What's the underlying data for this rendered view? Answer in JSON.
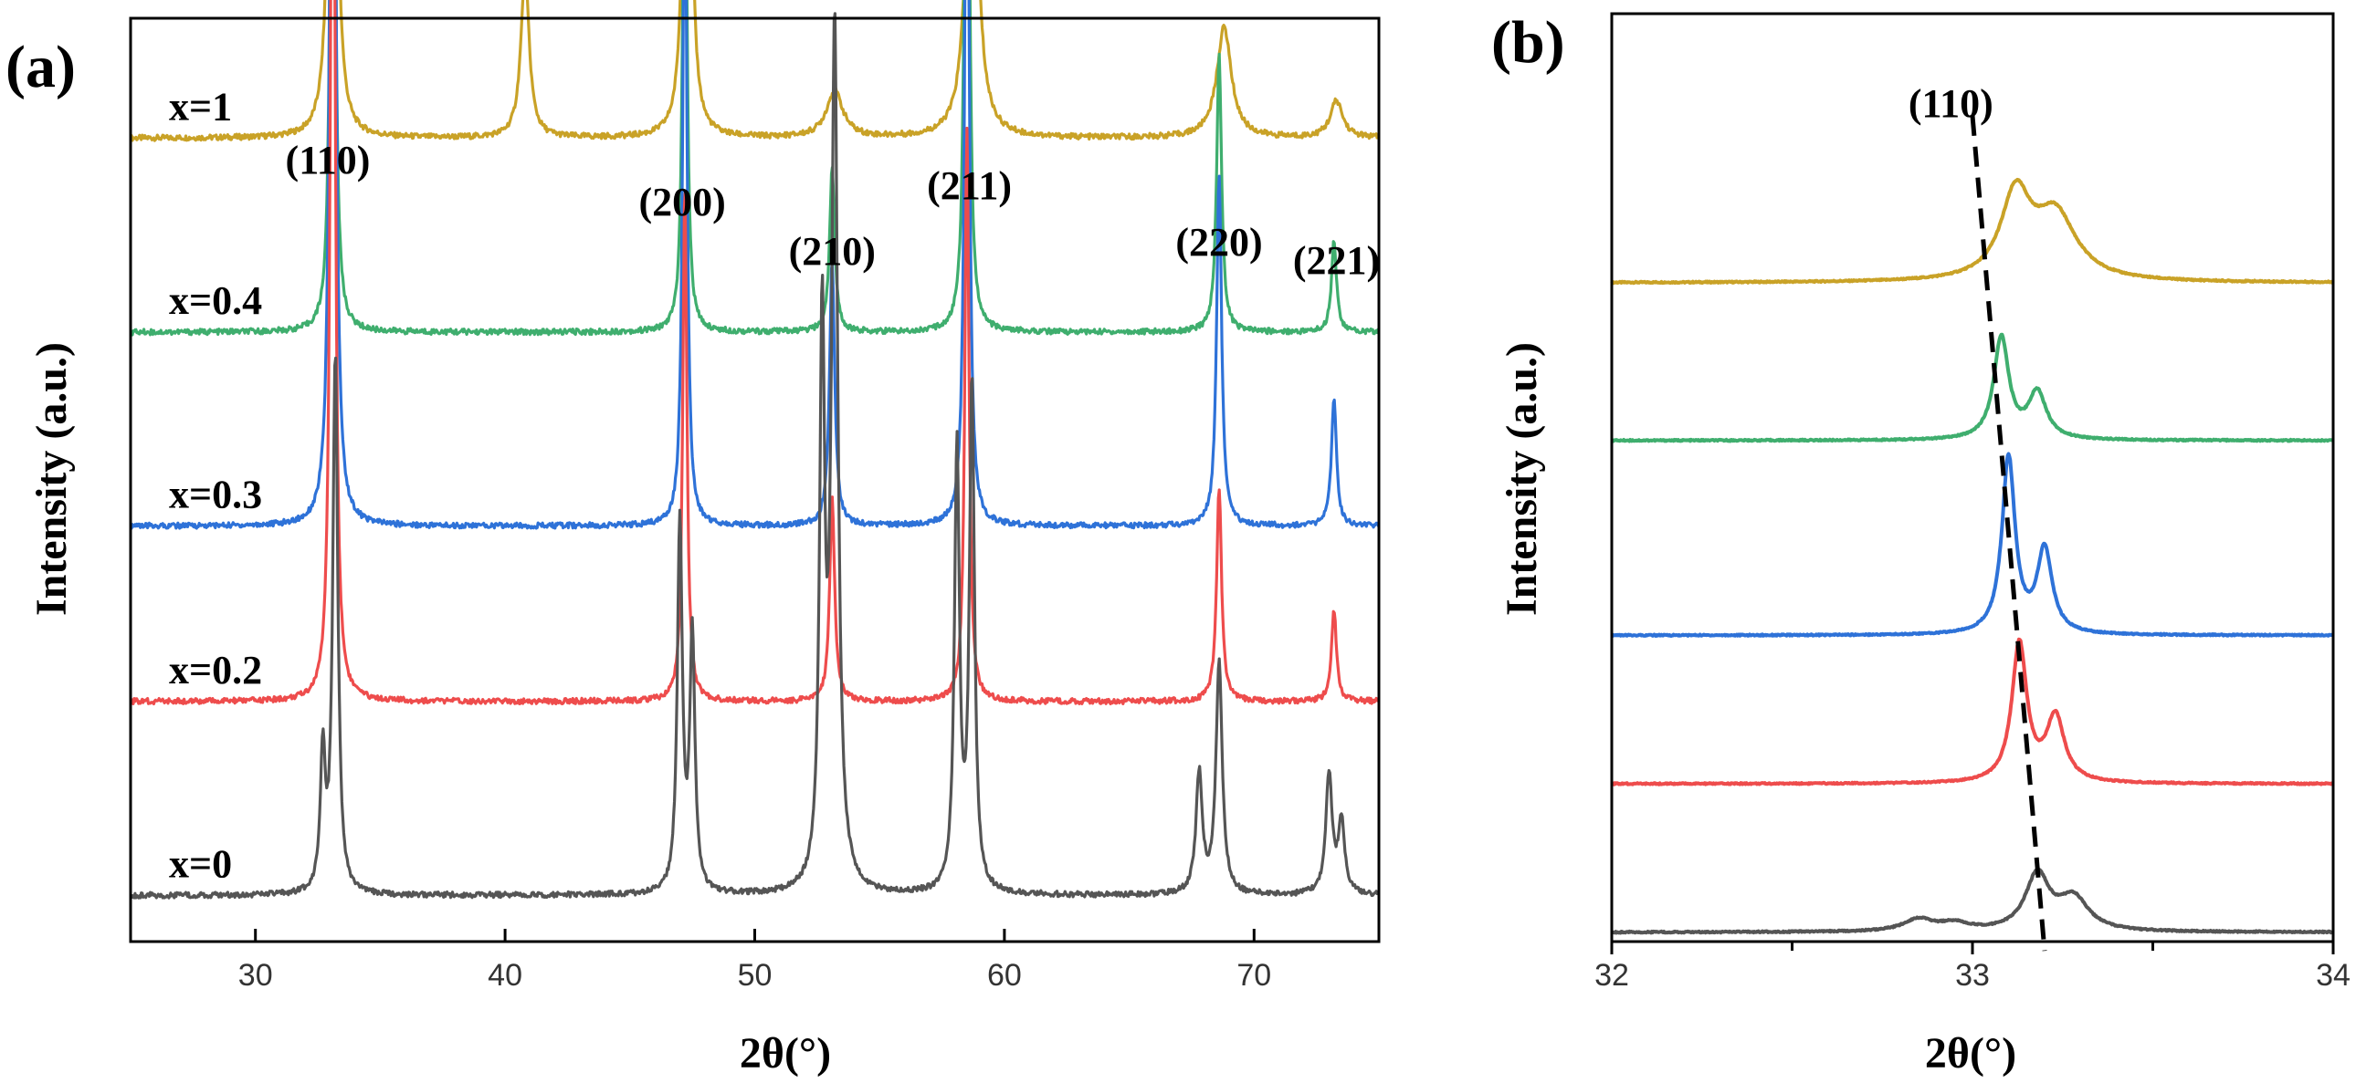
{
  "chart_data": [
    {
      "panel": "(a)",
      "type": "line",
      "title": "",
      "xlabel": "2θ(°)",
      "ylabel": "Intensity (a.u.)",
      "xlim": [
        25,
        75
      ],
      "xticks": [
        30,
        40,
        50,
        60,
        70
      ],
      "peak_labels": [
        {
          "text": "(110)",
          "x": 32.9
        },
        {
          "text": "(200)",
          "x": 47.1
        },
        {
          "text": "(210)",
          "x": 53.1
        },
        {
          "text": "(211)",
          "x": 58.6
        },
        {
          "text": "(220)",
          "x": 68.6
        },
        {
          "text": "(221)",
          "x": 73.3
        }
      ],
      "series": [
        {
          "name": "x=1",
          "color": "#C9A227",
          "baseline": 0.87,
          "peaks": [
            [
              33.1,
              0.82,
              0.15
            ],
            [
              40.8,
              0.18,
              0.2
            ],
            [
              47.3,
              0.7,
              0.15
            ],
            [
              53.2,
              0.05,
              0.4
            ],
            [
              58.7,
              0.44,
              0.25
            ],
            [
              68.8,
              0.12,
              0.35
            ],
            [
              73.3,
              0.04,
              0.3
            ]
          ]
        },
        {
          "name": "x=0.4",
          "color": "#3FAE6E",
          "baseline": 0.66,
          "peaks": [
            [
              33.1,
              0.96,
              0.1
            ],
            [
              47.2,
              0.63,
              0.1
            ],
            [
              53.1,
              0.18,
              0.12
            ],
            [
              58.5,
              0.91,
              0.1
            ],
            [
              68.6,
              0.3,
              0.12
            ],
            [
              73.2,
              0.1,
              0.12
            ]
          ]
        },
        {
          "name": "x=0.3",
          "color": "#2E72D8",
          "baseline": 0.45,
          "peaks": [
            [
              33.1,
              1.6,
              0.1
            ],
            [
              47.2,
              0.76,
              0.1
            ],
            [
              53.1,
              0.29,
              0.12
            ],
            [
              58.5,
              0.96,
              0.1
            ],
            [
              68.6,
              0.38,
              0.12
            ],
            [
              73.2,
              0.14,
              0.12
            ]
          ]
        },
        {
          "name": "x=0.2",
          "color": "#EE4C4C",
          "baseline": 0.26,
          "peaks": [
            [
              33.1,
              1.31,
              0.1
            ],
            [
              47.2,
              0.56,
              0.1
            ],
            [
              53.1,
              0.22,
              0.12
            ],
            [
              58.5,
              0.62,
              0.1
            ],
            [
              68.6,
              0.23,
              0.12
            ],
            [
              73.2,
              0.1,
              0.12
            ]
          ]
        },
        {
          "name": "x=0",
          "color": "#555555",
          "baseline": 0.05,
          "peaks": [
            [
              32.7,
              0.15,
              0.12
            ],
            [
              33.2,
              0.58,
              0.12
            ],
            [
              47.0,
              0.4,
              0.12
            ],
            [
              47.5,
              0.28,
              0.12
            ],
            [
              52.7,
              0.6,
              0.12
            ],
            [
              53.2,
              0.93,
              0.15
            ],
            [
              58.1,
              0.48,
              0.12
            ],
            [
              58.7,
              0.55,
              0.12
            ],
            [
              67.8,
              0.13,
              0.15
            ],
            [
              68.6,
              0.25,
              0.15
            ],
            [
              73.0,
              0.13,
              0.15
            ],
            [
              73.5,
              0.08,
              0.15
            ]
          ]
        }
      ]
    },
    {
      "panel": "(b)",
      "type": "line",
      "title": "",
      "xlabel": "2θ(°)",
      "ylabel": "Intensity (a.u.)",
      "xlim": [
        32,
        34
      ],
      "xticks": [
        32,
        33,
        34
      ],
      "xtick_labels": [
        "32",
        "33",
        "34"
      ],
      "peak_labels": [
        {
          "text": "(110)",
          "x": 32.94
        }
      ],
      "trend_line": {
        "style": "dashed",
        "points": [
          [
            33.0,
            0.89
          ],
          [
            33.2,
            -0.01
          ]
        ]
      },
      "series": [
        {
          "name": "x=1",
          "color": "#C9A227",
          "baseline": 0.71,
          "peaks": [
            [
              33.12,
              0.09,
              0.05
            ],
            [
              33.23,
              0.07,
              0.07
            ]
          ]
        },
        {
          "name": "x=0.4",
          "color": "#3FAE6E",
          "baseline": 0.54,
          "peaks": [
            [
              33.08,
              0.11,
              0.025
            ],
            [
              33.18,
              0.05,
              0.03
            ]
          ]
        },
        {
          "name": "x=0.3",
          "color": "#2E72D8",
          "baseline": 0.33,
          "peaks": [
            [
              33.1,
              0.19,
              0.022
            ],
            [
              33.2,
              0.09,
              0.025
            ]
          ]
        },
        {
          "name": "x=0.2",
          "color": "#EE4C4C",
          "baseline": 0.17,
          "peaks": [
            [
              33.13,
              0.15,
              0.025
            ],
            [
              33.23,
              0.07,
              0.03
            ]
          ]
        },
        {
          "name": "x=0",
          "color": "#555555",
          "baseline": 0.01,
          "peaks": [
            [
              32.85,
              0.013,
              0.05
            ],
            [
              32.95,
              0.008,
              0.05
            ],
            [
              33.18,
              0.06,
              0.04
            ],
            [
              33.28,
              0.035,
              0.05
            ]
          ]
        }
      ]
    }
  ]
}
